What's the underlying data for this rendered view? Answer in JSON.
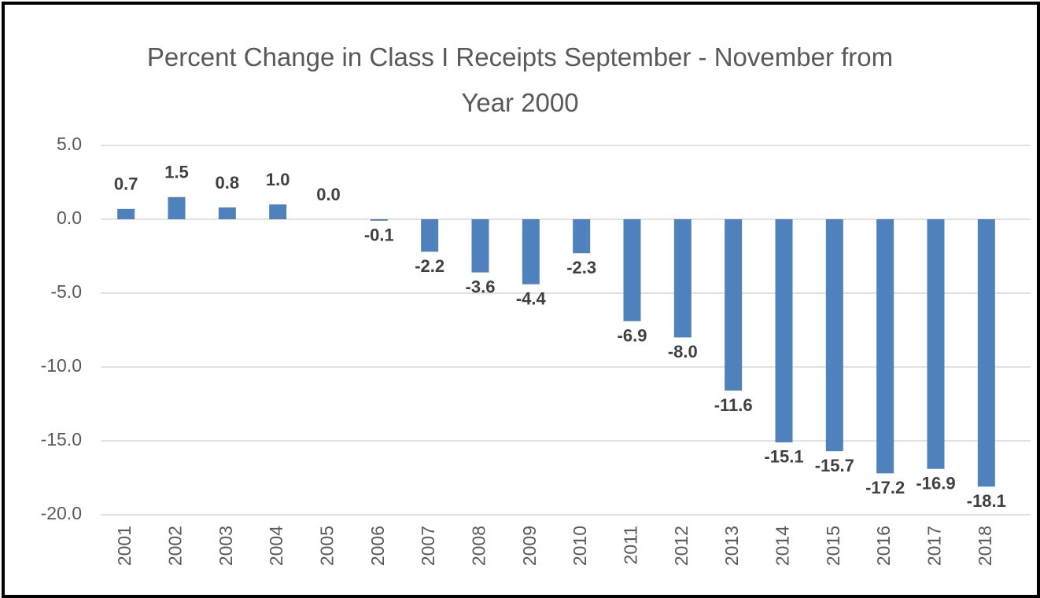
{
  "chart_data": {
    "type": "bar",
    "title": "Percent Change in Class I Receipts September - November from Year 2000",
    "categories": [
      "2001",
      "2002",
      "2003",
      "2004",
      "2005",
      "2006",
      "2007",
      "2008",
      "2009",
      "2010",
      "2011",
      "2012",
      "2013",
      "2014",
      "2015",
      "2016",
      "2017",
      "2018"
    ],
    "values": [
      0.7,
      1.5,
      0.8,
      1,
      0,
      -0.1,
      -2.2,
      -3.6,
      -4.4,
      -2.3,
      -6.9,
      -8,
      -11.6,
      -15.1,
      -15.7,
      -17.2,
      -16.9,
      -18.1
    ],
    "value_labels": [
      "0.7",
      "1.5",
      "0.8",
      "1.0",
      "0.0",
      "-0.1",
      "-2.2",
      "-3.6",
      "-4.4",
      "-2.3",
      "-6.9",
      "-8.0",
      "-11.6",
      "-15.1",
      "-15.7",
      "-17.2",
      "-16.9",
      "-18.1"
    ],
    "color": "#4f81bd",
    "ylim": [
      -20,
      5
    ],
    "yticks": [
      {
        "value": -20,
        "label": "-20.0"
      },
      {
        "value": -15,
        "label": "-15.0"
      },
      {
        "value": -10,
        "label": "-10.0"
      },
      {
        "value": -5,
        "label": "-5.0"
      },
      {
        "value": 0,
        "label": "0.0"
      },
      {
        "value": 5,
        "label": "5.0"
      }
    ],
    "grid": true
  }
}
